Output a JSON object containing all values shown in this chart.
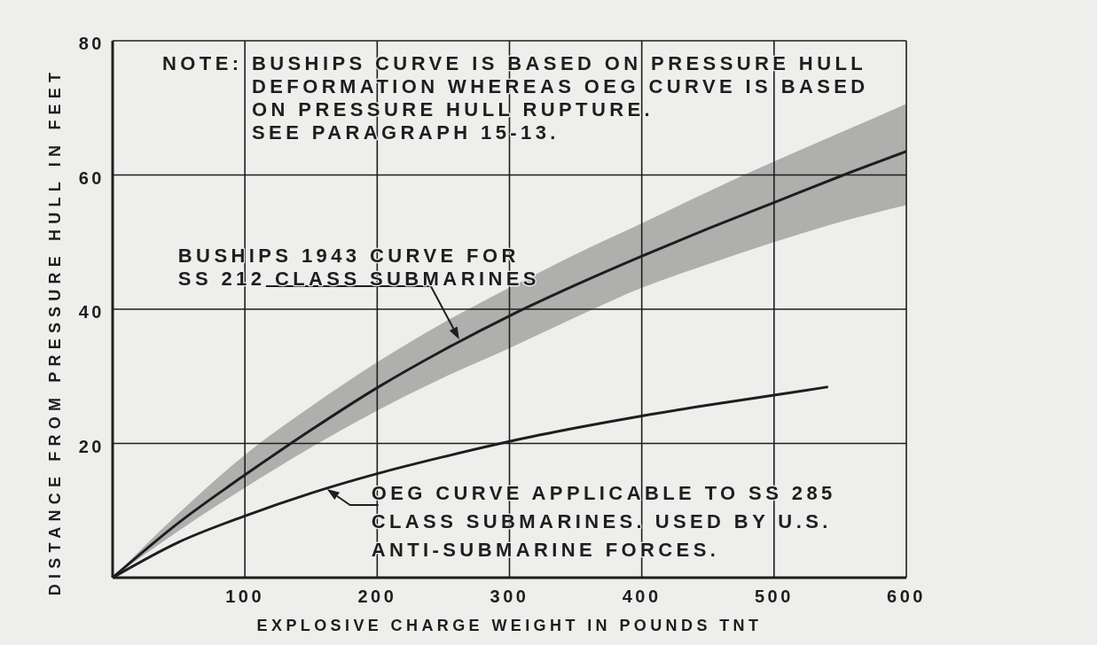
{
  "chart_data": {
    "type": "line",
    "xlabel": "EXPLOSIVE CHARGE WEIGHT IN POUNDS TNT",
    "ylabel": "DISTANCE FROM PRESSURE HULL IN FEET",
    "x": [
      0,
      50,
      100,
      150,
      200,
      250,
      300,
      350,
      400,
      450,
      500,
      550,
      600
    ],
    "series": [
      {
        "color": "#1e1e1e",
        "values": [
          0,
          8.2,
          15.3,
          22.0,
          28.3,
          33.9,
          39.0,
          43.6,
          47.9,
          52.0,
          55.9,
          59.8,
          63.5
        ],
        "lower": [
          0,
          7.0,
          13.4,
          19.4,
          24.9,
          29.8,
          34.2,
          38.8,
          43.2,
          46.7,
          50.0,
          53.0,
          55.5
        ],
        "upper": [
          0,
          9.6,
          18.3,
          25.5,
          32.1,
          38.0,
          43.2,
          48.2,
          52.8,
          57.5,
          62.0,
          66.3,
          70.6
        ]
      },
      {
        "color": "#1e1e1e",
        "x": [
          0,
          50,
          100,
          150,
          200,
          250,
          300,
          350,
          400,
          450,
          500,
          540
        ],
        "values": [
          0,
          5.3,
          9.2,
          12.6,
          15.5,
          18.0,
          20.3,
          22.3,
          24.1,
          25.7,
          27.2,
          28.4
        ]
      }
    ],
    "xlim": [
      0,
      600
    ],
    "ylim": [
      0,
      80
    ],
    "xticks": [
      100,
      200,
      300,
      400,
      500,
      600
    ],
    "yticks": [
      20,
      40,
      60,
      80
    ],
    "grid": true,
    "annotations": [
      "NOTE: BUSHIPS CURVE IS BASED ON PRESSURE HULL\nDEFORMATION WHEREAS OEG CURVE IS BASED\nON PRESSURE HULL RUPTURE.\nSEE PARAGRAPH 15-13.",
      {
        "text": "BUSHIPS 1943 CURVE FOR\nSS 212 CLASS SUBMARINES",
        "x": 262,
        "y": 35.5
      },
      {
        "text": "OEG CURVE APPLICABLE TO SS 285\nCLASS SUBMARINES. USED BY U.S.\nANTI-SUBMARINE FORCES.",
        "x": 162,
        "y": 13.2
      }
    ]
  }
}
